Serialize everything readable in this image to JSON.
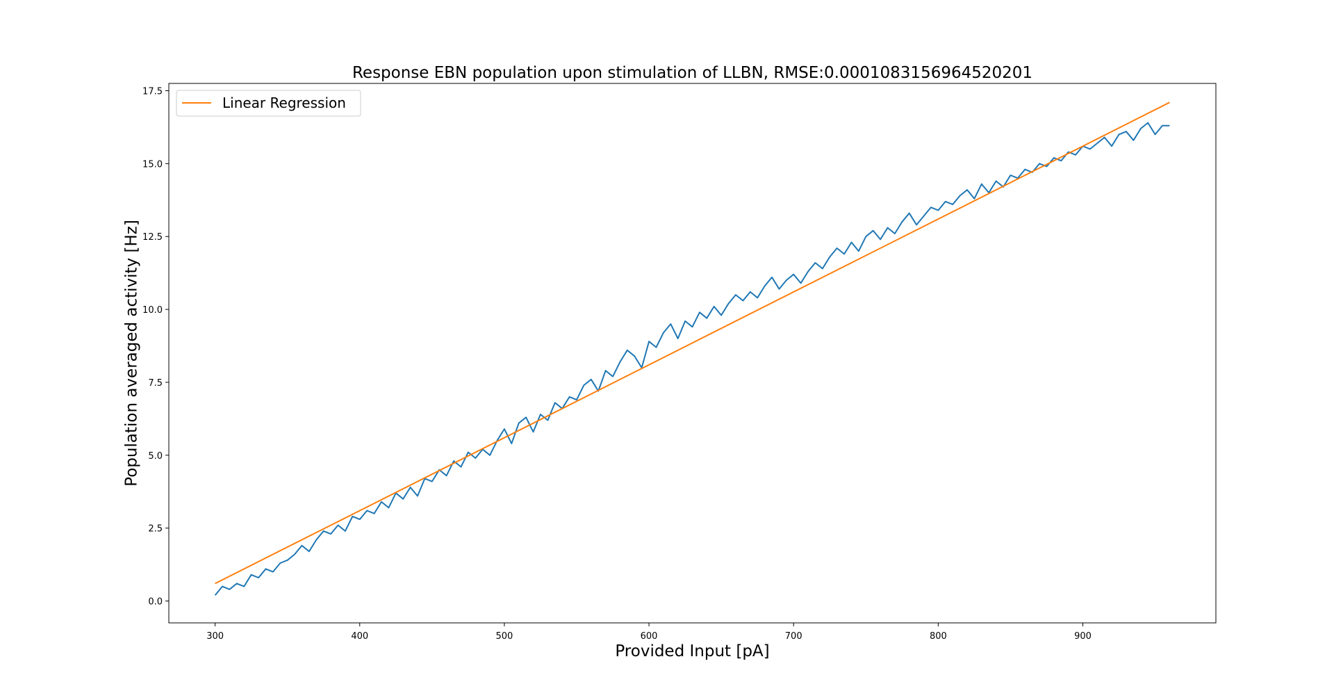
{
  "chart_data": {
    "type": "line",
    "title": "Response EBN population upon stimulation of LLBN, RMSE:0.0001083156964520201",
    "xlabel": "Provided Input [pA]",
    "ylabel": "Population averaged activity [Hz]",
    "xlim": [
      268,
      992
    ],
    "ylim": [
      -0.75,
      17.75
    ],
    "xticks": [
      300,
      400,
      500,
      600,
      700,
      800,
      900
    ],
    "xtick_labels": [
      "300",
      "400",
      "500",
      "600",
      "700",
      "800",
      "900"
    ],
    "yticks": [
      0.0,
      2.5,
      5.0,
      7.5,
      10.0,
      12.5,
      15.0,
      17.5
    ],
    "ytick_labels": [
      "0.0",
      "2.5",
      "5.0",
      "7.5",
      "10.0",
      "12.5",
      "15.0",
      "17.5"
    ],
    "grid": false,
    "legend": {
      "placement": "upper-left",
      "entries": [
        "Linear Regression"
      ]
    },
    "series": [
      {
        "kind": "measured",
        "color": "#1f77b4",
        "x": [
          300,
          305,
          310,
          315,
          320,
          325,
          330,
          335,
          340,
          345,
          350,
          355,
          360,
          365,
          370,
          375,
          380,
          385,
          390,
          395,
          400,
          405,
          410,
          415,
          420,
          425,
          430,
          435,
          440,
          445,
          450,
          455,
          460,
          465,
          470,
          475,
          480,
          485,
          490,
          495,
          500,
          505,
          510,
          515,
          520,
          525,
          530,
          535,
          540,
          545,
          550,
          555,
          560,
          565,
          570,
          575,
          580,
          585,
          590,
          595,
          600,
          605,
          610,
          615,
          620,
          625,
          630,
          635,
          640,
          645,
          650,
          655,
          660,
          665,
          670,
          675,
          680,
          685,
          690,
          695,
          700,
          705,
          710,
          715,
          720,
          725,
          730,
          735,
          740,
          745,
          750,
          755,
          760,
          765,
          770,
          775,
          780,
          785,
          790,
          795,
          800,
          805,
          810,
          815,
          820,
          825,
          830,
          835,
          840,
          845,
          850,
          855,
          860,
          865,
          870,
          875,
          880,
          885,
          890,
          895,
          900,
          905,
          910,
          915,
          920,
          925,
          930,
          935,
          940,
          945,
          950,
          955,
          960
        ],
        "values": [
          0.2,
          0.5,
          0.4,
          0.6,
          0.5,
          0.9,
          0.8,
          1.1,
          1.0,
          1.3,
          1.4,
          1.6,
          1.9,
          1.7,
          2.1,
          2.4,
          2.3,
          2.6,
          2.4,
          2.9,
          2.8,
          3.1,
          3.0,
          3.4,
          3.2,
          3.7,
          3.5,
          3.9,
          3.6,
          4.2,
          4.1,
          4.5,
          4.3,
          4.8,
          4.6,
          5.1,
          4.9,
          5.2,
          5.0,
          5.5,
          5.9,
          5.4,
          6.1,
          6.3,
          5.8,
          6.4,
          6.2,
          6.8,
          6.6,
          7.0,
          6.9,
          7.4,
          7.6,
          7.2,
          7.9,
          7.7,
          8.2,
          8.6,
          8.4,
          8.0,
          8.9,
          8.7,
          9.2,
          9.5,
          9.0,
          9.6,
          9.4,
          9.9,
          9.7,
          10.1,
          9.8,
          10.2,
          10.5,
          10.3,
          10.6,
          10.4,
          10.8,
          11.1,
          10.7,
          11.0,
          11.2,
          10.9,
          11.3,
          11.6,
          11.4,
          11.8,
          12.1,
          11.9,
          12.3,
          12.0,
          12.5,
          12.7,
          12.4,
          12.8,
          12.6,
          13.0,
          13.3,
          12.9,
          13.2,
          13.5,
          13.4,
          13.7,
          13.6,
          13.9,
          14.1,
          13.8,
          14.3,
          14.0,
          14.4,
          14.2,
          14.6,
          14.5,
          14.8,
          14.7,
          15.0,
          14.9,
          15.2,
          15.1,
          15.4,
          15.3,
          15.6,
          15.5,
          15.7,
          15.9,
          15.6,
          16.0,
          16.1,
          15.8,
          16.2,
          16.4,
          16.0,
          16.3,
          16.3
        ]
      },
      {
        "kind": "fit",
        "name": "Linear Regression",
        "color": "#ff7f0e",
        "x": [
          300,
          960
        ],
        "values": [
          0.6,
          17.1
        ]
      }
    ]
  }
}
